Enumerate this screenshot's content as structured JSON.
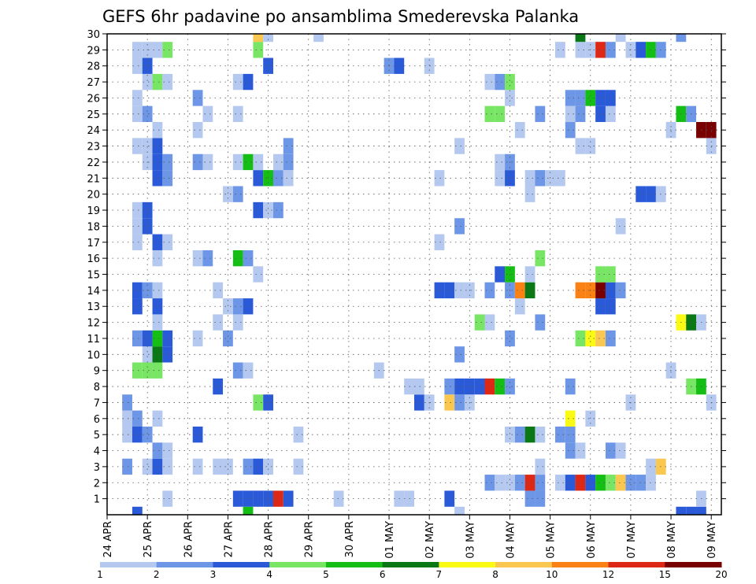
{
  "chart_data": {
    "type": "heatmap",
    "title": "GEFS 6hr padavine po ansamblima Smederevska Palanka",
    "xlabel": "",
    "ylabel": "",
    "x_range": [
      0,
      61
    ],
    "y_range": [
      0,
      30
    ],
    "grid": "dotted",
    "x_ticks": [
      {
        "pos": 0,
        "label": "24 APR"
      },
      {
        "pos": 4,
        "label": "25 APR"
      },
      {
        "pos": 8,
        "label": "26 APR"
      },
      {
        "pos": 12,
        "label": "27 APR"
      },
      {
        "pos": 16,
        "label": "28 APR"
      },
      {
        "pos": 20,
        "label": "29 APR"
      },
      {
        "pos": 24,
        "label": "30 APR"
      },
      {
        "pos": 28,
        "label": "01 MAY"
      },
      {
        "pos": 32,
        "label": "02 MAY"
      },
      {
        "pos": 36,
        "label": "03 MAY"
      },
      {
        "pos": 40,
        "label": "04 MAY"
      },
      {
        "pos": 44,
        "label": "05 MAY"
      },
      {
        "pos": 48,
        "label": "06 MAY"
      },
      {
        "pos": 52,
        "label": "07 MAY"
      },
      {
        "pos": 56,
        "label": "08 MAY"
      },
      {
        "pos": 60,
        "label": "09 MAY"
      }
    ],
    "y_ticks": [
      1,
      2,
      3,
      4,
      5,
      6,
      7,
      8,
      9,
      10,
      11,
      12,
      13,
      14,
      15,
      16,
      17,
      18,
      19,
      20,
      21,
      22,
      23,
      24,
      25,
      26,
      27,
      28,
      29,
      30
    ],
    "colorbar": {
      "labels": [
        "1",
        "2",
        "3",
        "4",
        "5",
        "6",
        "7",
        "8",
        "10",
        "12",
        "15",
        "20"
      ],
      "colors": [
        "#b4c8f0",
        "#6e96e6",
        "#2a5ad8",
        "#78e664",
        "#14be14",
        "#0a7814",
        "#fafa14",
        "#fac850",
        "#fa8214",
        "#dc2814",
        "#780000"
      ]
    },
    "cells": [
      [
        3,
        0,
        2
      ],
      [
        14,
        0,
        4
      ],
      [
        35,
        0,
        0
      ],
      [
        57,
        0,
        2
      ],
      [
        58,
        0,
        2
      ],
      [
        59,
        0,
        2
      ],
      [
        6,
        1,
        0
      ],
      [
        13,
        1,
        2
      ],
      [
        14,
        1,
        2
      ],
      [
        15,
        1,
        2
      ],
      [
        16,
        1,
        2
      ],
      [
        17,
        1,
        9
      ],
      [
        18,
        1,
        2
      ],
      [
        23,
        1,
        0
      ],
      [
        29,
        1,
        0
      ],
      [
        30,
        1,
        0
      ],
      [
        34,
        1,
        2
      ],
      [
        42,
        1,
        1
      ],
      [
        43,
        1,
        1
      ],
      [
        59,
        1,
        0
      ],
      [
        38,
        2,
        1
      ],
      [
        39,
        2,
        0
      ],
      [
        40,
        2,
        0
      ],
      [
        41,
        2,
        1
      ],
      [
        42,
        2,
        9
      ],
      [
        43,
        2,
        1
      ],
      [
        45,
        2,
        0
      ],
      [
        46,
        2,
        2
      ],
      [
        47,
        2,
        9
      ],
      [
        48,
        2,
        2
      ],
      [
        49,
        2,
        4
      ],
      [
        50,
        2,
        3
      ],
      [
        51,
        2,
        7
      ],
      [
        52,
        2,
        1
      ],
      [
        53,
        2,
        1
      ],
      [
        54,
        2,
        0
      ],
      [
        2,
        3,
        1
      ],
      [
        4,
        3,
        0
      ],
      [
        5,
        3,
        2
      ],
      [
        6,
        3,
        0
      ],
      [
        9,
        3,
        0
      ],
      [
        11,
        3,
        0
      ],
      [
        12,
        3,
        0
      ],
      [
        14,
        3,
        1
      ],
      [
        15,
        3,
        2
      ],
      [
        16,
        3,
        0
      ],
      [
        19,
        3,
        0
      ],
      [
        43,
        3,
        0
      ],
      [
        54,
        3,
        0
      ],
      [
        55,
        3,
        7
      ],
      [
        5,
        4,
        1
      ],
      [
        6,
        4,
        0
      ],
      [
        46,
        4,
        1
      ],
      [
        47,
        4,
        0
      ],
      [
        50,
        4,
        1
      ],
      [
        51,
        4,
        0
      ],
      [
        2,
        5,
        0
      ],
      [
        3,
        5,
        2
      ],
      [
        4,
        5,
        1
      ],
      [
        9,
        5,
        2
      ],
      [
        19,
        5,
        0
      ],
      [
        40,
        5,
        0
      ],
      [
        41,
        5,
        1
      ],
      [
        42,
        5,
        5
      ],
      [
        43,
        5,
        0
      ],
      [
        45,
        5,
        1
      ],
      [
        46,
        5,
        1
      ],
      [
        2,
        6,
        0
      ],
      [
        3,
        6,
        1
      ],
      [
        5,
        6,
        0
      ],
      [
        46,
        6,
        6
      ],
      [
        48,
        6,
        0
      ],
      [
        2,
        7,
        1
      ],
      [
        15,
        7,
        3
      ],
      [
        16,
        7,
        2
      ],
      [
        31,
        7,
        2
      ],
      [
        32,
        7,
        0
      ],
      [
        34,
        7,
        7
      ],
      [
        35,
        7,
        1
      ],
      [
        36,
        7,
        0
      ],
      [
        52,
        7,
        0
      ],
      [
        60,
        7,
        0
      ],
      [
        11,
        8,
        2
      ],
      [
        30,
        8,
        0
      ],
      [
        31,
        8,
        0
      ],
      [
        34,
        8,
        1
      ],
      [
        35,
        8,
        2
      ],
      [
        36,
        8,
        2
      ],
      [
        37,
        8,
        2
      ],
      [
        38,
        8,
        9
      ],
      [
        39,
        8,
        4
      ],
      [
        40,
        8,
        1
      ],
      [
        46,
        8,
        1
      ],
      [
        58,
        8,
        3
      ],
      [
        59,
        8,
        4
      ],
      [
        3,
        9,
        3
      ],
      [
        4,
        9,
        3
      ],
      [
        5,
        9,
        3
      ],
      [
        13,
        9,
        1
      ],
      [
        14,
        9,
        0
      ],
      [
        27,
        9,
        0
      ],
      [
        56,
        9,
        0
      ],
      [
        4,
        10,
        0
      ],
      [
        5,
        10,
        5
      ],
      [
        6,
        10,
        2
      ],
      [
        35,
        10,
        1
      ],
      [
        3,
        11,
        1
      ],
      [
        4,
        11,
        2
      ],
      [
        5,
        11,
        4
      ],
      [
        6,
        11,
        2
      ],
      [
        9,
        11,
        0
      ],
      [
        12,
        11,
        1
      ],
      [
        40,
        11,
        1
      ],
      [
        47,
        11,
        3
      ],
      [
        48,
        11,
        6
      ],
      [
        49,
        11,
        7
      ],
      [
        50,
        11,
        1
      ],
      [
        5,
        12,
        0
      ],
      [
        11,
        12,
        0
      ],
      [
        13,
        12,
        0
      ],
      [
        37,
        12,
        3
      ],
      [
        38,
        12,
        0
      ],
      [
        43,
        12,
        1
      ],
      [
        57,
        12,
        6
      ],
      [
        58,
        12,
        5
      ],
      [
        59,
        12,
        0
      ],
      [
        3,
        13,
        2
      ],
      [
        5,
        13,
        2
      ],
      [
        12,
        13,
        0
      ],
      [
        13,
        13,
        1
      ],
      [
        14,
        13,
        2
      ],
      [
        41,
        13,
        0
      ],
      [
        49,
        13,
        2
      ],
      [
        50,
        13,
        2
      ],
      [
        3,
        14,
        2
      ],
      [
        4,
        14,
        1
      ],
      [
        5,
        14,
        0
      ],
      [
        11,
        14,
        0
      ],
      [
        33,
        14,
        2
      ],
      [
        34,
        14,
        2
      ],
      [
        35,
        14,
        0
      ],
      [
        36,
        14,
        0
      ],
      [
        38,
        14,
        1
      ],
      [
        40,
        14,
        1
      ],
      [
        41,
        14,
        8
      ],
      [
        42,
        14,
        5
      ],
      [
        47,
        14,
        8
      ],
      [
        48,
        14,
        8
      ],
      [
        49,
        14,
        10
      ],
      [
        50,
        14,
        2
      ],
      [
        51,
        14,
        1
      ],
      [
        15,
        15,
        0
      ],
      [
        39,
        15,
        2
      ],
      [
        40,
        15,
        4
      ],
      [
        42,
        15,
        0
      ],
      [
        49,
        15,
        3
      ],
      [
        50,
        15,
        3
      ],
      [
        5,
        16,
        0
      ],
      [
        9,
        16,
        0
      ],
      [
        10,
        16,
        1
      ],
      [
        13,
        16,
        4
      ],
      [
        14,
        16,
        1
      ],
      [
        43,
        16,
        3
      ],
      [
        3,
        17,
        0
      ],
      [
        5,
        17,
        2
      ],
      [
        6,
        17,
        0
      ],
      [
        33,
        17,
        0
      ],
      [
        3,
        18,
        0
      ],
      [
        4,
        18,
        2
      ],
      [
        35,
        18,
        1
      ],
      [
        51,
        18,
        0
      ],
      [
        3,
        19,
        0
      ],
      [
        4,
        19,
        2
      ],
      [
        15,
        19,
        2
      ],
      [
        16,
        19,
        0
      ],
      [
        17,
        19,
        1
      ],
      [
        12,
        20,
        0
      ],
      [
        13,
        20,
        1
      ],
      [
        42,
        20,
        0
      ],
      [
        53,
        20,
        2
      ],
      [
        54,
        20,
        2
      ],
      [
        55,
        20,
        0
      ],
      [
        5,
        21,
        2
      ],
      [
        6,
        21,
        1
      ],
      [
        15,
        21,
        2
      ],
      [
        16,
        21,
        4
      ],
      [
        17,
        21,
        1
      ],
      [
        18,
        21,
        0
      ],
      [
        33,
        21,
        0
      ],
      [
        39,
        21,
        0
      ],
      [
        40,
        21,
        2
      ],
      [
        42,
        21,
        0
      ],
      [
        43,
        21,
        1
      ],
      [
        44,
        21,
        0
      ],
      [
        45,
        21,
        0
      ],
      [
        4,
        22,
        0
      ],
      [
        5,
        22,
        2
      ],
      [
        6,
        22,
        1
      ],
      [
        9,
        22,
        1
      ],
      [
        10,
        22,
        0
      ],
      [
        13,
        22,
        0
      ],
      [
        14,
        22,
        4
      ],
      [
        15,
        22,
        0
      ],
      [
        17,
        22,
        0
      ],
      [
        18,
        22,
        1
      ],
      [
        39,
        22,
        0
      ],
      [
        40,
        22,
        1
      ],
      [
        3,
        23,
        0
      ],
      [
        4,
        23,
        0
      ],
      [
        5,
        23,
        2
      ],
      [
        18,
        23,
        1
      ],
      [
        35,
        23,
        0
      ],
      [
        47,
        23,
        0
      ],
      [
        48,
        23,
        0
      ],
      [
        60,
        23,
        0
      ],
      [
        5,
        24,
        0
      ],
      [
        9,
        24,
        0
      ],
      [
        41,
        24,
        0
      ],
      [
        46,
        24,
        1
      ],
      [
        56,
        24,
        0
      ],
      [
        59,
        24,
        10
      ],
      [
        60,
        24,
        10
      ],
      [
        3,
        25,
        0
      ],
      [
        4,
        25,
        1
      ],
      [
        10,
        25,
        0
      ],
      [
        13,
        25,
        0
      ],
      [
        38,
        25,
        3
      ],
      [
        39,
        25,
        3
      ],
      [
        43,
        25,
        1
      ],
      [
        46,
        25,
        0
      ],
      [
        47,
        25,
        1
      ],
      [
        49,
        25,
        2
      ],
      [
        50,
        25,
        0
      ],
      [
        57,
        25,
        4
      ],
      [
        58,
        25,
        1
      ],
      [
        3,
        26,
        0
      ],
      [
        9,
        26,
        1
      ],
      [
        40,
        26,
        0
      ],
      [
        46,
        26,
        1
      ],
      [
        47,
        26,
        1
      ],
      [
        48,
        26,
        4
      ],
      [
        49,
        26,
        2
      ],
      [
        50,
        26,
        2
      ],
      [
        4,
        27,
        0
      ],
      [
        5,
        27,
        3
      ],
      [
        6,
        27,
        0
      ],
      [
        13,
        27,
        0
      ],
      [
        14,
        27,
        2
      ],
      [
        38,
        27,
        0
      ],
      [
        39,
        27,
        1
      ],
      [
        40,
        27,
        3
      ],
      [
        3,
        28,
        0
      ],
      [
        4,
        28,
        2
      ],
      [
        16,
        28,
        2
      ],
      [
        28,
        28,
        1
      ],
      [
        29,
        28,
        2
      ],
      [
        32,
        28,
        0
      ],
      [
        3,
        29,
        0
      ],
      [
        4,
        29,
        0
      ],
      [
        5,
        29,
        0
      ],
      [
        6,
        29,
        3
      ],
      [
        15,
        29,
        3
      ],
      [
        45,
        29,
        0
      ],
      [
        47,
        29,
        0
      ],
      [
        48,
        29,
        0
      ],
      [
        49,
        29,
        9
      ],
      [
        50,
        29,
        1
      ],
      [
        52,
        29,
        0
      ],
      [
        53,
        29,
        2
      ],
      [
        54,
        29,
        4
      ],
      [
        55,
        29,
        1
      ],
      [
        15,
        30,
        7
      ],
      [
        16,
        30,
        0
      ],
      [
        21,
        30,
        0
      ],
      [
        47,
        30,
        5
      ],
      [
        51,
        30,
        0
      ],
      [
        57,
        30,
        1
      ]
    ]
  }
}
